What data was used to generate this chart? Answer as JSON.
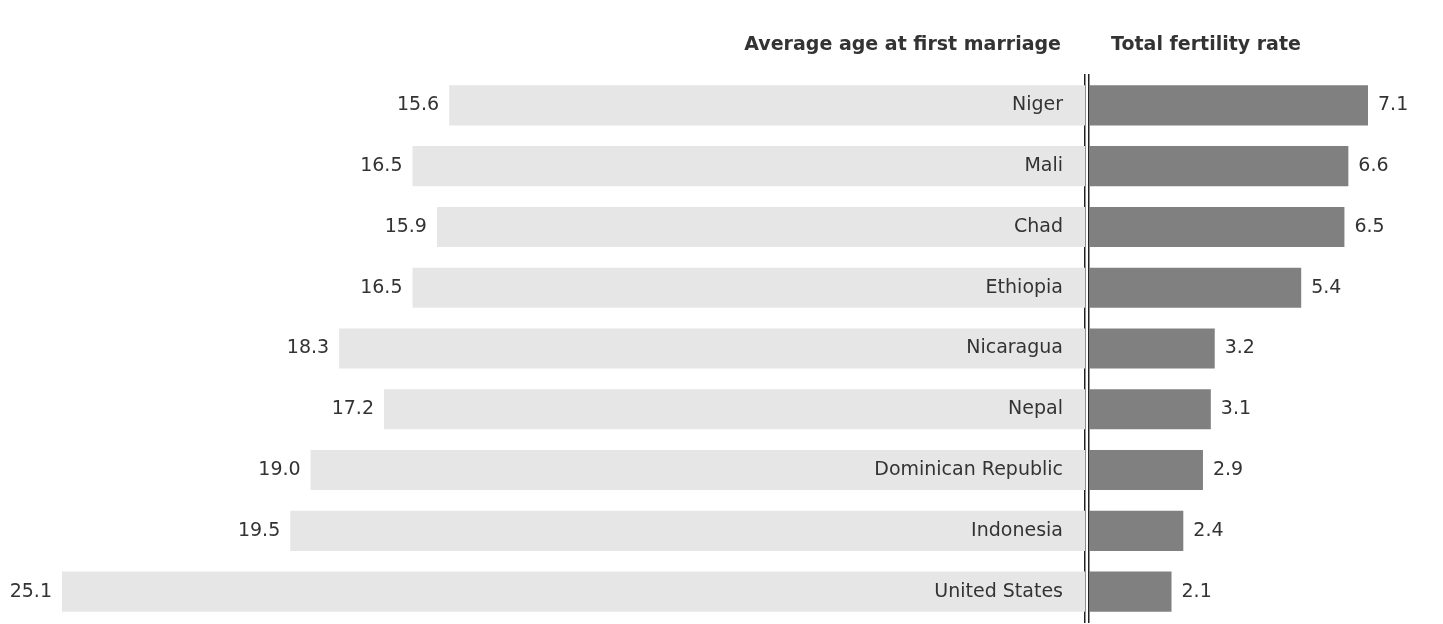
{
  "chart_data": [
    {
      "type": "bar",
      "orientation": "horizontal",
      "title": "Average age at first marriage",
      "categories": [
        "Niger",
        "Mali",
        "Chad",
        "Ethiopia",
        "Nicaragua",
        "Nepal",
        "Dominican Republic",
        "Indonesia",
        "United States"
      ],
      "values": [
        15.6,
        16.5,
        15.9,
        16.5,
        18.3,
        17.2,
        19.0,
        19.5,
        25.1
      ],
      "value_labels": [
        "15.6",
        "16.5",
        "15.9",
        "16.5",
        "18.3",
        "17.2",
        "19.0",
        "19.5",
        "25.1"
      ],
      "color": "#e6e6e6",
      "tick_labels": "y",
      "grid": false,
      "legend": false
    },
    {
      "type": "bar",
      "orientation": "horizontal",
      "title": "Total fertility rate",
      "categories": [
        null,
        null,
        null,
        null,
        null,
        null,
        null,
        null,
        null
      ],
      "values": [
        7.1,
        6.6,
        6.5,
        5.4,
        3.2,
        3.1,
        2.9,
        2.4,
        2.1
      ],
      "value_labels": [
        "7.1",
        "6.6",
        "6.5",
        "5.4",
        "3.2",
        "3.1",
        "2.9",
        "2.4",
        "2.1"
      ],
      "color": "#808080",
      "tick_labels": false,
      "grid": false,
      "legend": false
    }
  ]
}
